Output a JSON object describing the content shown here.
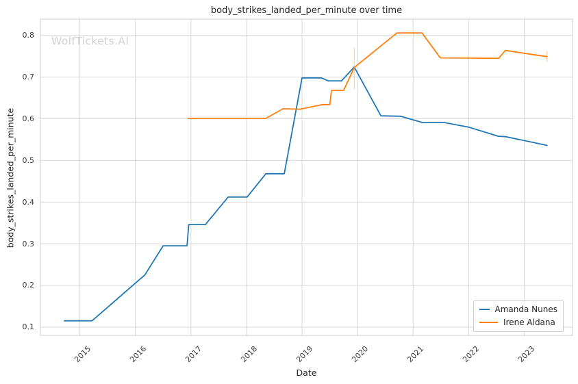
{
  "watermark": "WolfTickets.AI",
  "chart_data": {
    "type": "line",
    "title": "body_strikes_landed_per_minute over time",
    "xlabel": "Date",
    "ylabel": "body_strikes_landed_per_minute",
    "grid": true,
    "legend_position": "lower right",
    "xlim": [
      2014.29,
      2023.87
    ],
    "ylim": [
      0.08,
      0.839
    ],
    "xticks": [
      2015,
      2016,
      2017,
      2018,
      2019,
      2020,
      2021,
      2022,
      2023
    ],
    "xtick_labels": [
      "2015",
      "2016",
      "2017",
      "2018",
      "2019",
      "2020",
      "2021",
      "2022",
      "2023"
    ],
    "yticks": [
      0.1,
      0.2,
      0.3,
      0.4,
      0.5,
      0.6,
      0.7,
      0.8
    ],
    "ytick_labels": [
      "0.1",
      "0.2",
      "0.3",
      "0.4",
      "0.5",
      "0.6",
      "0.7",
      "0.8"
    ],
    "grid_color": "#d9d9d9",
    "frame_color": "#cccccc",
    "series": [
      {
        "name": "Amanda Nunes",
        "color": "#1f77b4",
        "points": [
          [
            2014.72,
            0.115
          ],
          [
            2015.22,
            0.115
          ],
          [
            2016.17,
            0.225
          ],
          [
            2016.5,
            0.295
          ],
          [
            2016.93,
            0.295
          ],
          [
            2016.96,
            0.346
          ],
          [
            2017.26,
            0.346
          ],
          [
            2017.67,
            0.412
          ],
          [
            2018.01,
            0.412
          ],
          [
            2018.35,
            0.468
          ],
          [
            2018.68,
            0.468
          ],
          [
            2019.0,
            0.698
          ],
          [
            2019.35,
            0.698
          ],
          [
            2019.47,
            0.691
          ],
          [
            2019.71,
            0.691
          ],
          [
            2019.94,
            0.724
          ],
          [
            2020.42,
            0.607
          ],
          [
            2020.77,
            0.606
          ],
          [
            2021.17,
            0.591
          ],
          [
            2021.56,
            0.591
          ],
          [
            2022.0,
            0.58
          ],
          [
            2022.53,
            0.558
          ],
          [
            2022.67,
            0.557
          ],
          [
            2023.41,
            0.536
          ]
        ]
      },
      {
        "name": "Irene Aldana",
        "color": "#ff7f0e",
        "points": [
          [
            2016.95,
            0.601
          ],
          [
            2018.35,
            0.601
          ],
          [
            2018.66,
            0.624
          ],
          [
            2018.97,
            0.623
          ],
          [
            2019.37,
            0.634
          ],
          [
            2019.5,
            0.634
          ],
          [
            2019.53,
            0.668
          ],
          [
            2019.75,
            0.668
          ],
          [
            2019.94,
            0.723
          ],
          [
            2020.71,
            0.806
          ],
          [
            2021.16,
            0.806
          ],
          [
            2021.49,
            0.746
          ],
          [
            2022.54,
            0.745
          ],
          [
            2022.66,
            0.764
          ],
          [
            2023.41,
            0.749
          ]
        ]
      }
    ],
    "error_bars": [
      {
        "series": "Irene Aldana",
        "x": 2019.94,
        "y_low": 0.67,
        "y_high": 0.771
      },
      {
        "series": "Irene Aldana",
        "x": 2023.41,
        "y_low": 0.737,
        "y_high": 0.762
      }
    ]
  }
}
